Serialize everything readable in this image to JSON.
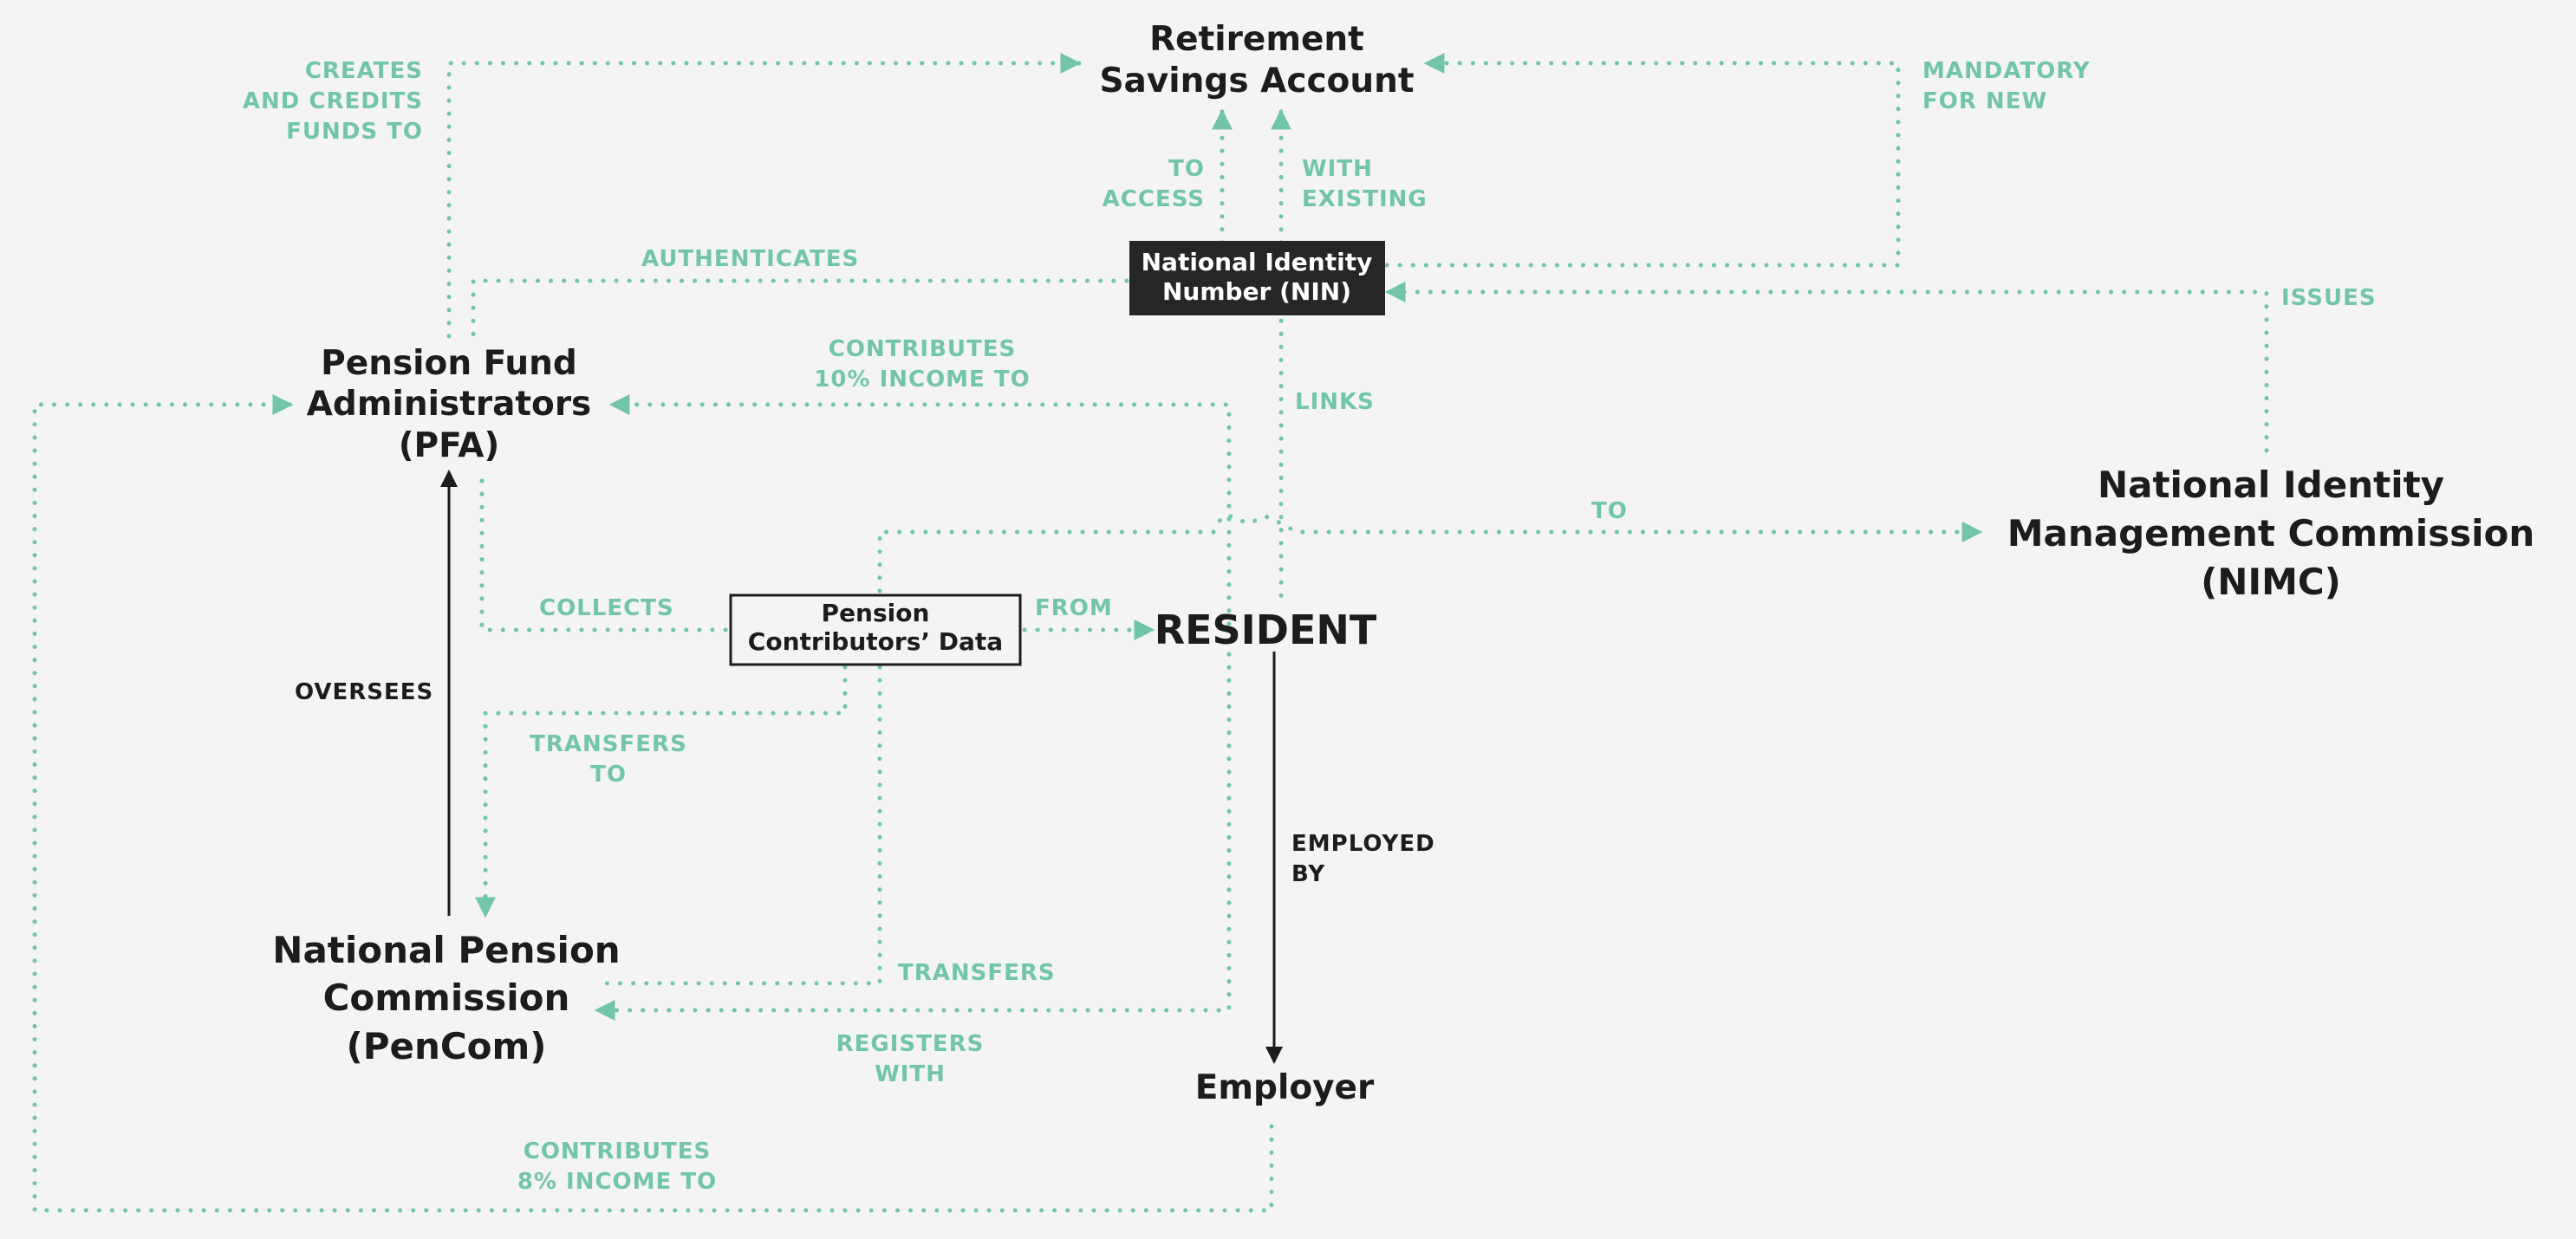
{
  "colors": {
    "background": "#f4f4f3",
    "accent": "#72c5ab",
    "ink": "#1c1c1c",
    "nin_box_fill": "#262626",
    "nin_box_text": "#ffffff"
  },
  "nodes": {
    "rsa": {
      "line1": "Retirement",
      "line2": "Savings Account"
    },
    "pfa": {
      "line1": "Pension Fund",
      "line2": "Administrators",
      "line3": "(PFA)"
    },
    "pencom": {
      "line1": "National Pension",
      "line2": "Commission",
      "line3": "(PenCom)"
    },
    "nimc": {
      "line1": "National Identity",
      "line2": "Management Commission",
      "line3": "(NIMC)"
    },
    "resident": {
      "label": "RESIDENT"
    },
    "employer": {
      "label": "Employer"
    },
    "nin": {
      "line1": "National Identity",
      "line2": "Number (NIN)"
    },
    "pcd": {
      "line1": "Pension",
      "line2": "Contributors’ Data"
    }
  },
  "edge_labels": {
    "creates": {
      "line1": "CREATES",
      "line2": "AND CREDITS",
      "line3": "FUNDS TO"
    },
    "mandatory": {
      "line1": "MANDATORY",
      "line2": "FOR NEW"
    },
    "to_access": {
      "line1": "TO",
      "line2": "ACCESS"
    },
    "with_existing": {
      "line1": "WITH",
      "line2": "EXISTING"
    },
    "authenticates": {
      "line1": "AUTHENTICATES"
    },
    "issues": {
      "line1": "ISSUES"
    },
    "contributes_10": {
      "line1": "CONTRIBUTES",
      "line2": "10% INCOME TO"
    },
    "links": {
      "line1": "LINKS"
    },
    "to_nimc": {
      "line1": "TO"
    },
    "collects": {
      "line1": "COLLECTS"
    },
    "from": {
      "line1": "FROM"
    },
    "oversees": {
      "line1": "OVERSEES"
    },
    "transfers_to": {
      "line1": "TRANSFERS",
      "line2": "TO"
    },
    "employed_by": {
      "line1": "EMPLOYED",
      "line2": "BY"
    },
    "transfers": {
      "line1": "TRANSFERS"
    },
    "registers_with": {
      "line1": "REGISTERS",
      "line2": "WITH"
    },
    "contributes_8": {
      "line1": "CONTRIBUTES",
      "line2": "8% INCOME TO"
    }
  }
}
